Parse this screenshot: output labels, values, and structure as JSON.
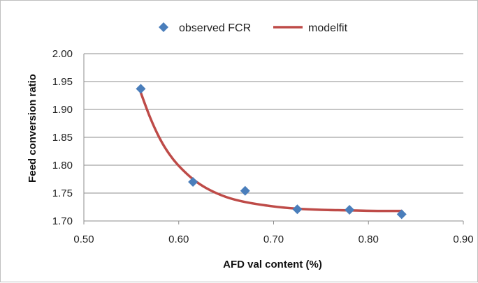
{
  "chart_data": {
    "type": "scatter",
    "title": "",
    "xlabel": "AFD val content (%)",
    "ylabel": "Feed conversion ratio",
    "xlim": [
      0.5,
      0.9
    ],
    "ylim": [
      1.7,
      2.0
    ],
    "x_ticks": [
      "0.50",
      "0.60",
      "0.70",
      "0.80",
      "0.90"
    ],
    "y_ticks": [
      "1.70",
      "1.75",
      "1.80",
      "1.85",
      "1.90",
      "1.95",
      "2.00"
    ],
    "grid": "horizontal",
    "legend_position": "top",
    "series": [
      {
        "name": "observed FCR",
        "kind": "scatter",
        "marker": "diamond",
        "color": "#4a7ebb",
        "x": [
          0.56,
          0.615,
          0.67,
          0.725,
          0.78,
          0.835
        ],
        "y": [
          1.937,
          1.77,
          1.754,
          1.721,
          1.72,
          1.712
        ]
      },
      {
        "name": "modelfit",
        "kind": "line",
        "color": "#be4b48",
        "x": [
          0.56,
          0.57,
          0.58,
          0.59,
          0.6,
          0.615,
          0.63,
          0.65,
          0.67,
          0.7,
          0.725,
          0.75,
          0.78,
          0.81,
          0.835
        ],
        "y": [
          1.93,
          1.885,
          1.848,
          1.82,
          1.799,
          1.775,
          1.758,
          1.743,
          1.734,
          1.726,
          1.722,
          1.72,
          1.719,
          1.718,
          1.718
        ]
      }
    ]
  }
}
